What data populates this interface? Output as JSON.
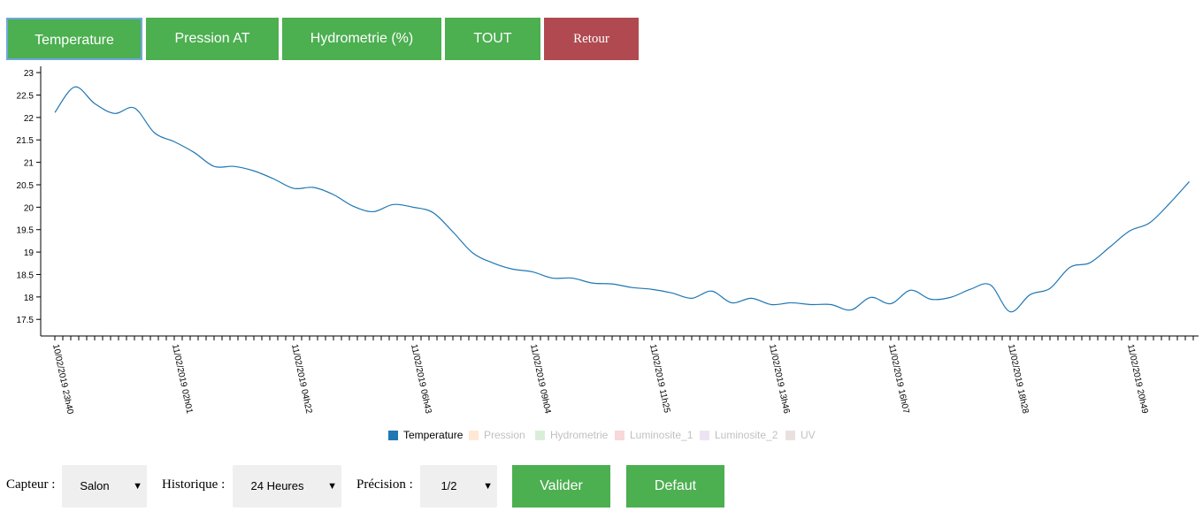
{
  "tabs": [
    "Temperature",
    "Pression AT",
    "Hydrometrie (%)",
    "TOUT",
    "Retour"
  ],
  "chart_data": {
    "type": "line",
    "categories": [
      "10/02/2019 23h40",
      null,
      null,
      null,
      null,
      null,
      "11/02/2019 02h01",
      null,
      null,
      null,
      null,
      null,
      "11/02/2019 04h22",
      null,
      null,
      null,
      null,
      null,
      "11/02/2019 06h43",
      null,
      null,
      null,
      null,
      null,
      "11/02/2019 09h04",
      null,
      null,
      null,
      null,
      null,
      "11/02/2019 11h25",
      null,
      null,
      null,
      null,
      null,
      "11/02/2019 13h46",
      null,
      null,
      null,
      null,
      null,
      "11/02/2019 16h07",
      null,
      null,
      null,
      null,
      null,
      "11/02/2019 18h28",
      null,
      null,
      null,
      null,
      null,
      "11/02/2019 20h49",
      null,
      null,
      null
    ],
    "series": [
      {
        "name": "Temperature",
        "color": "#1f77b4",
        "visible": true,
        "values": [
          22.11,
          22.68,
          22.31,
          22.09,
          22.21,
          21.66,
          21.46,
          21.22,
          20.91,
          20.91,
          20.81,
          20.63,
          20.42,
          20.44,
          20.28,
          20.02,
          19.9,
          20.06,
          20.0,
          19.88,
          19.45,
          18.98,
          18.76,
          18.62,
          18.56,
          18.42,
          18.42,
          18.31,
          18.29,
          18.21,
          18.17,
          18.09,
          17.97,
          18.13,
          17.87,
          17.97,
          17.83,
          17.87,
          17.83,
          17.83,
          17.71,
          17.99,
          17.85,
          18.15,
          17.95,
          17.99,
          18.17,
          18.27,
          17.67,
          18.05,
          18.19,
          18.66,
          18.76,
          19.11,
          19.47,
          19.65,
          20.08,
          20.57
        ]
      },
      {
        "name": "Pression",
        "color": "#ff7f0e",
        "visible": false
      },
      {
        "name": "Hydrometrie",
        "color": "#2ca02c",
        "visible": false
      },
      {
        "name": "Luminosite_1",
        "color": "#d62728",
        "visible": false
      },
      {
        "name": "Luminosite_2",
        "color": "#9467bd",
        "visible": false
      },
      {
        "name": "UV",
        "color": "#8c564b",
        "visible": false
      }
    ],
    "ylim": [
      17.13,
      23.14
    ],
    "yticks": [
      17.5,
      18,
      18.5,
      19,
      19.5,
      20,
      20.5,
      21,
      21.5,
      22,
      22.5,
      23
    ]
  },
  "controls": {
    "capteur": {
      "label": "Capteur :",
      "value": "Salon"
    },
    "historique": {
      "label": "Historique :",
      "value": "24 Heures"
    },
    "precision": {
      "label": "Précision :",
      "value": "1/2"
    },
    "arrow": "▼",
    "buttons": [
      "Valider",
      "Defaut"
    ]
  }
}
